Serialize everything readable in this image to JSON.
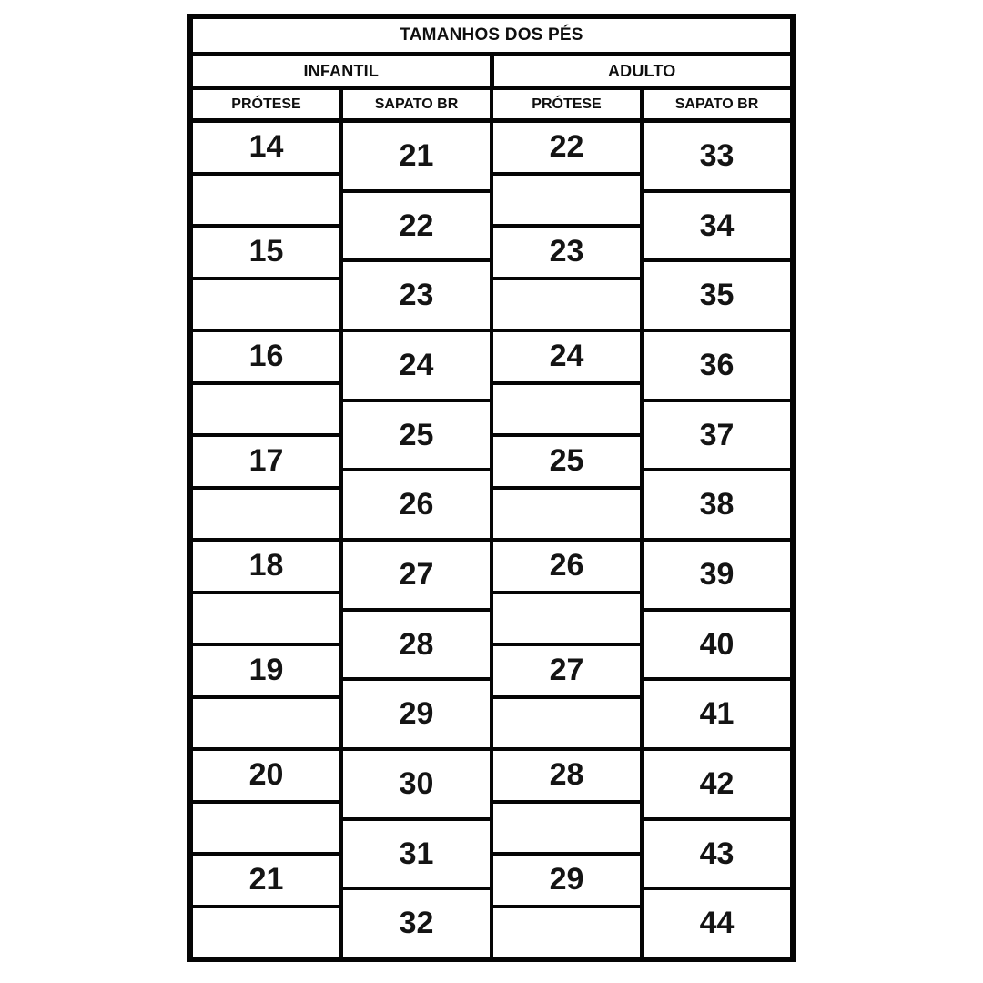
{
  "page": {
    "background_color": "#ffffff",
    "border_color": "#050505",
    "text_color": "#0f0f0f"
  },
  "table": {
    "title": "TAMANHOS DOS PÉS",
    "groups": [
      {
        "label": "INFANTIL",
        "columns": [
          {
            "header": "PRÓTESE",
            "cells": [
              "14",
              "",
              "15",
              "",
              "16",
              "",
              "17",
              "",
              "18",
              "",
              "19",
              "",
              "20",
              "",
              "21",
              ""
            ]
          },
          {
            "header": "SAPATO BR",
            "cells": [
              "21",
              "22",
              "23",
              "24",
              "25",
              "26",
              "27",
              "28",
              "29",
              "30",
              "31",
              "32"
            ]
          }
        ]
      },
      {
        "label": "ADULTO",
        "columns": [
          {
            "header": "PRÓTESE",
            "cells": [
              "22",
              "",
              "23",
              "",
              "24",
              "",
              "25",
              "",
              "26",
              "",
              "27",
              "",
              "28",
              "",
              "29",
              ""
            ]
          },
          {
            "header": "SAPATO BR",
            "cells": [
              "33",
              "34",
              "35",
              "36",
              "37",
              "38",
              "39",
              "40",
              "41",
              "42",
              "43",
              "44"
            ]
          }
        ]
      }
    ]
  },
  "chart_data": {
    "type": "table",
    "title": "TAMANHOS DOS PÉS",
    "layout_note": "Prosthesis cells are staggered against shoe-size cells in a 4:3 row-height ratio; blank cells alternate with numbered cells in the PRÓTESE columns.",
    "sections": [
      {
        "name": "INFANTIL",
        "column_headers": [
          "PRÓTESE",
          "SAPATO BR"
        ],
        "protese_sizes": [
          14,
          15,
          16,
          17,
          18,
          19,
          20,
          21
        ],
        "sapato_br_sizes": [
          21,
          22,
          23,
          24,
          25,
          26,
          27,
          28,
          29,
          30,
          31,
          32
        ]
      },
      {
        "name": "ADULTO",
        "column_headers": [
          "PRÓTESE",
          "SAPATO BR"
        ],
        "protese_sizes": [
          22,
          23,
          24,
          25,
          26,
          27,
          28,
          29
        ],
        "sapato_br_sizes": [
          33,
          34,
          35,
          36,
          37,
          38,
          39,
          40,
          41,
          42,
          43,
          44
        ]
      }
    ]
  }
}
